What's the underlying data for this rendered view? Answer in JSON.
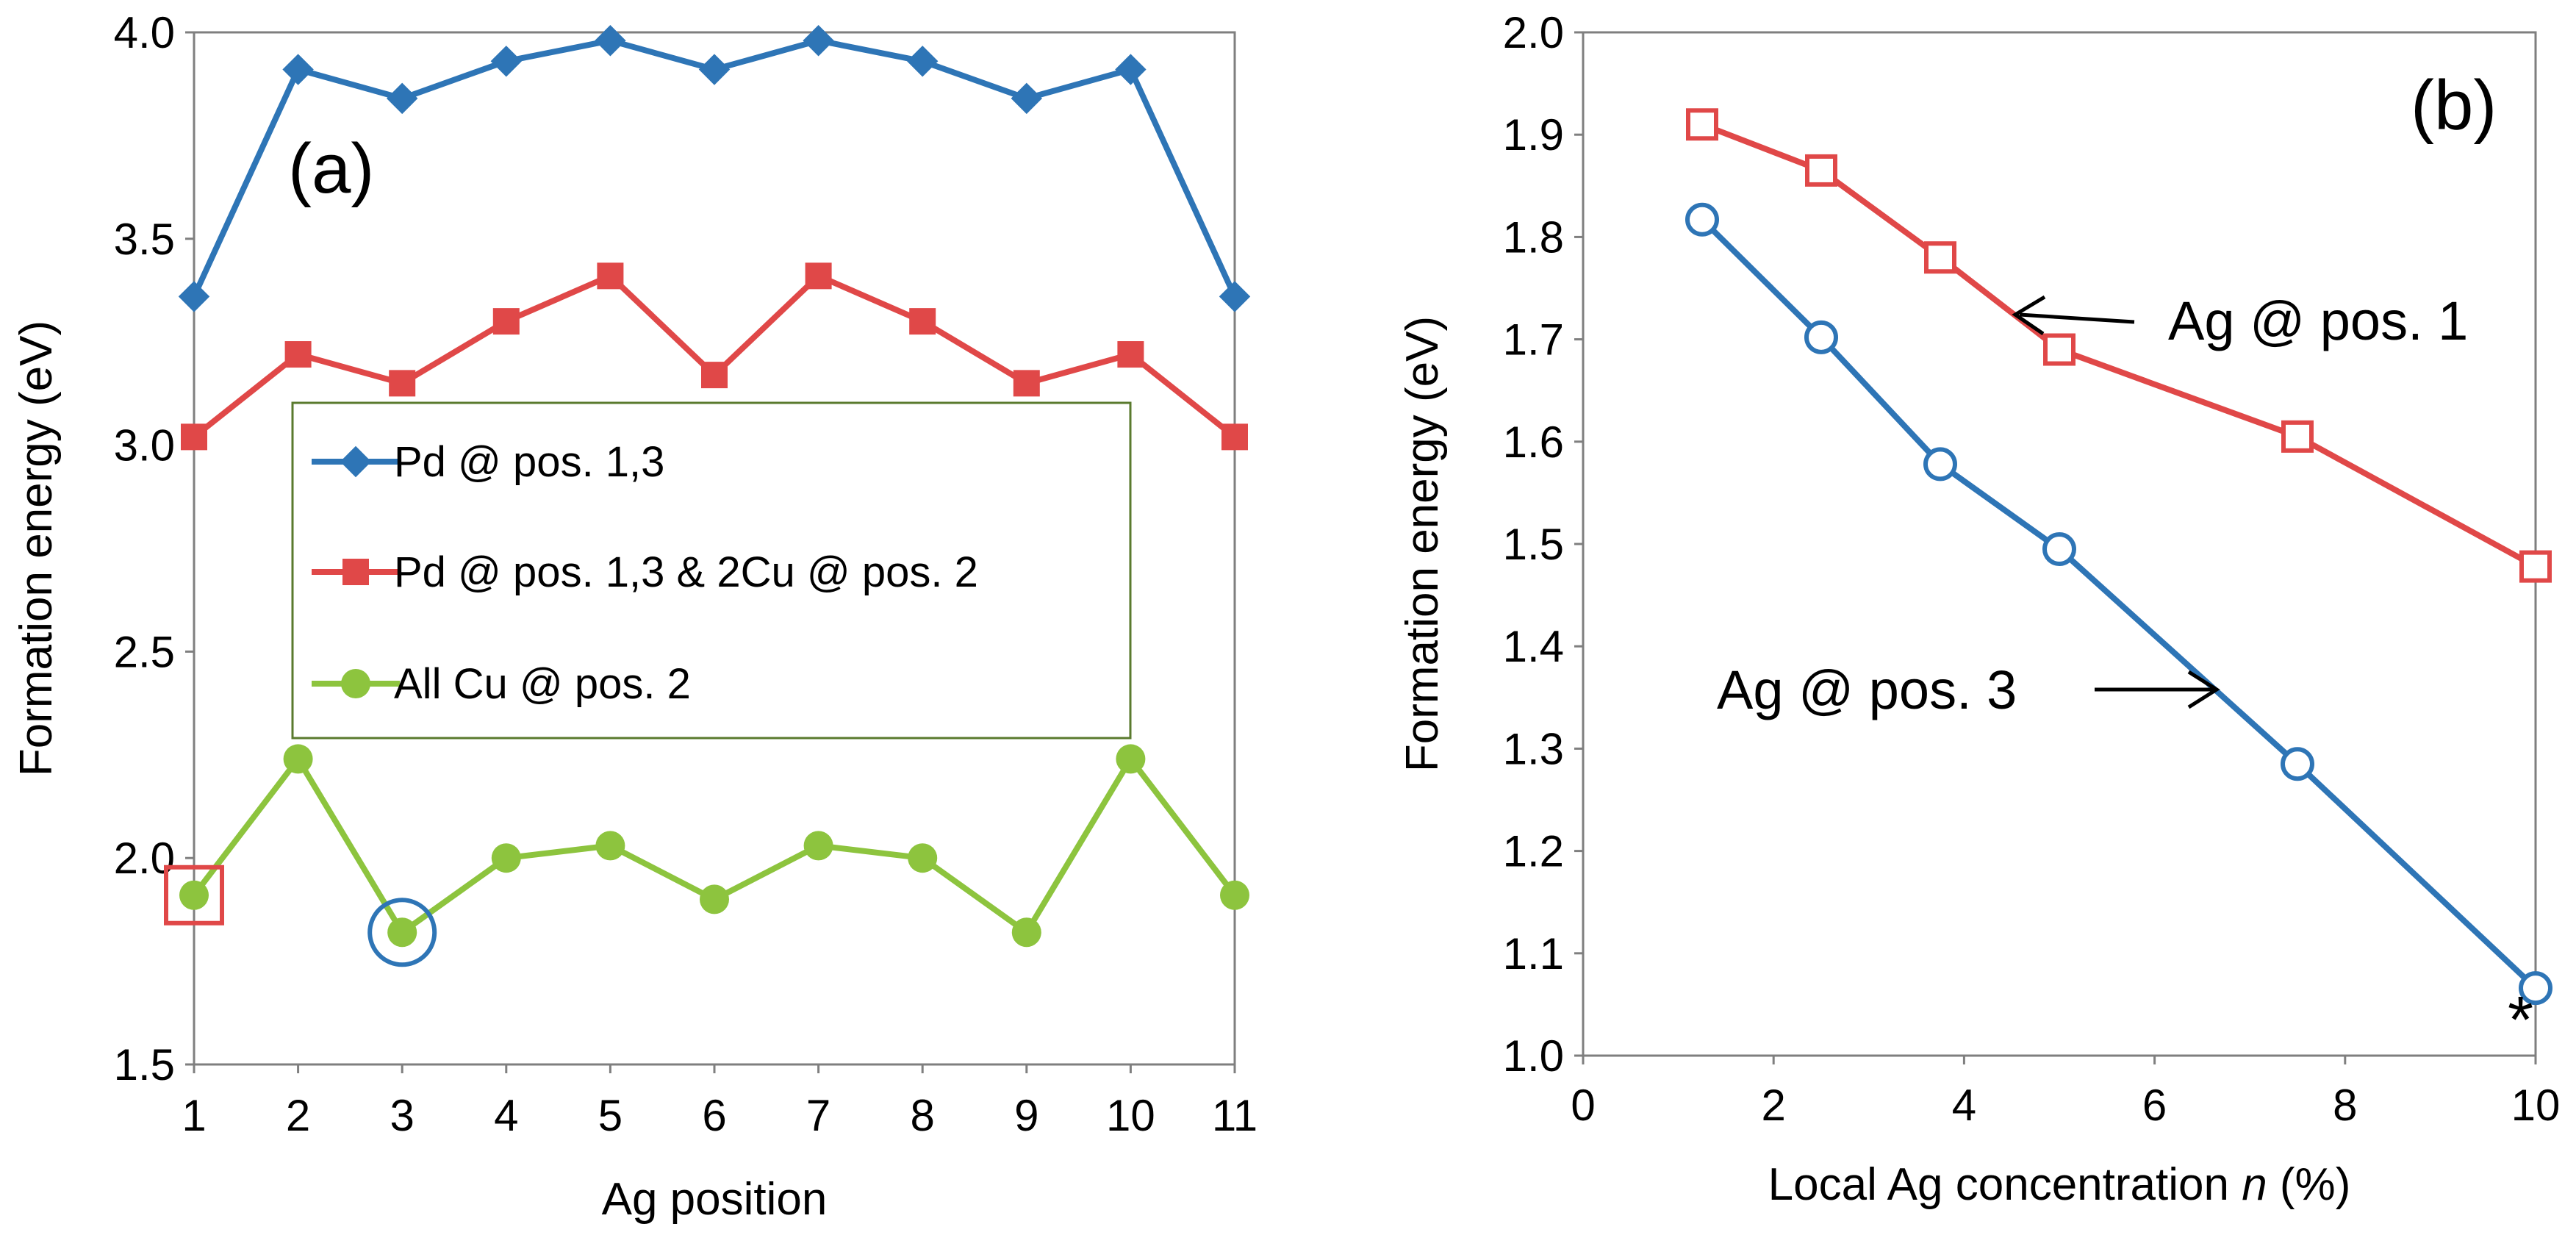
{
  "figure": {
    "chart_data": [
      {
        "panel": "(a)",
        "type": "line",
        "xlabel": "Ag position",
        "ylabel": "Formation energy (eV)",
        "categories": [
          "1",
          "2",
          "3",
          "4",
          "5",
          "6",
          "7",
          "8",
          "9",
          "10",
          "11"
        ],
        "x": [
          1,
          2,
          3,
          4,
          5,
          6,
          7,
          8,
          9,
          10,
          11
        ],
        "xlim": [
          1,
          11
        ],
        "ylim": [
          1.5,
          4.0
        ],
        "y_ticks": [
          "1.5",
          "2.0",
          "2.5",
          "3.0",
          "3.5",
          "4.0"
        ],
        "legend_position": "center-left",
        "series": [
          {
            "name": "Pd @ pos. 1,3",
            "color": "#2E75B6",
            "marker": "diamond",
            "values": [
              3.36,
              3.91,
              3.84,
              3.93,
              3.98,
              3.91,
              3.98,
              3.93,
              3.84,
              3.91,
              3.36
            ]
          },
          {
            "name": "Pd @ pos. 1,3 & 2Cu @ pos. 2",
            "color": "#E04848",
            "marker": "square",
            "values": [
              3.02,
              3.22,
              3.15,
              3.3,
              3.41,
              3.17,
              3.41,
              3.3,
              3.15,
              3.22,
              3.02
            ]
          },
          {
            "name": "All Cu @ pos. 2",
            "color": "#8DC43E",
            "marker": "circle",
            "values": [
              1.91,
              2.24,
              1.82,
              2.0,
              2.03,
              1.9,
              2.03,
              2.0,
              1.82,
              2.24,
              1.91
            ]
          }
        ],
        "highlights": [
          {
            "shape": "square",
            "x": 1,
            "y": 1.91,
            "color": "#E04848"
          },
          {
            "shape": "circle",
            "x": 3,
            "y": 1.82,
            "color": "#2E75B6"
          }
        ]
      },
      {
        "panel": "(b)",
        "type": "line",
        "xlabel_prefix": "Local Ag concentration ",
        "xlabel_var": "n",
        "xlabel_suffix": " (%)",
        "ylabel": "Formation energy (eV)",
        "xlim": [
          0,
          10
        ],
        "ylim": [
          1.0,
          2.0
        ],
        "x_ticks": [
          "0",
          "2",
          "4",
          "6",
          "8",
          "10"
        ],
        "y_ticks": [
          "1.0",
          "1.1",
          "1.2",
          "1.3",
          "1.4",
          "1.5",
          "1.6",
          "1.7",
          "1.8",
          "1.9",
          "2.0"
        ],
        "series": [
          {
            "name": "Ag @ pos. 1",
            "color": "#E04848",
            "marker": "open-square",
            "x": [
              1.25,
              2.5,
              3.75,
              5.0,
              7.5,
              10.0
            ],
            "values": [
              1.91,
              1.865,
              1.78,
              1.69,
              1.605,
              1.478
            ]
          },
          {
            "name": "Ag @ pos. 3",
            "color": "#2E75B6",
            "marker": "open-circle",
            "x": [
              1.25,
              2.5,
              3.75,
              5.0,
              7.5,
              10.0
            ],
            "values": [
              1.817,
              1.702,
              1.578,
              1.495,
              1.285,
              1.066
            ]
          }
        ],
        "annotations": [
          {
            "text": "Ag @ pos. 1",
            "arrow_to_x": 4.35,
            "arrow_to_y": 1.723
          },
          {
            "text": "Ag @ pos. 3",
            "arrow_to_x": 6.6,
            "arrow_to_y": 1.358
          }
        ],
        "marker_note": "*"
      }
    ]
  }
}
